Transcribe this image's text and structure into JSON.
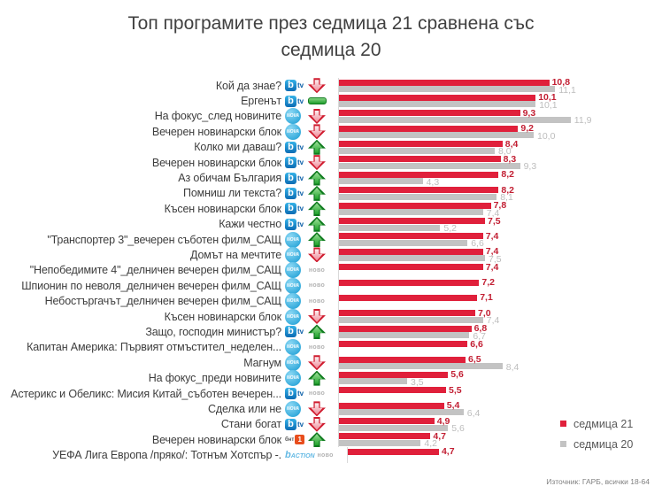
{
  "title": {
    "line1": "Топ програмите през седмица 21 сравнена със",
    "line2": "седмица 20"
  },
  "legend": {
    "items": [
      {
        "label": "седмица 21",
        "color": "#e0203b"
      },
      {
        "label": "седмица 20",
        "color": "#c3c3c3"
      }
    ]
  },
  "source": "Източник: ГАРБ, всички 18-64",
  "badges": {
    "new": "ново"
  },
  "logos": {
    "btv": {
      "square": "b",
      "suffix": "tv"
    },
    "nova": {
      "text": "NOVA"
    },
    "bnt1": {
      "prefix": "бнт",
      "square": "1"
    },
    "btv_action": {
      "text": "ACTION"
    }
  },
  "chart_data": {
    "type": "bar",
    "orientation": "horizontal",
    "title": "Топ програмите през седмица 21 сравнена със седмица 20",
    "series_names": [
      "седмица 21",
      "седмица 20"
    ],
    "xlim": [
      0,
      12
    ],
    "value_format": "comma-decimal",
    "legend_position": "bottom-right",
    "colors": {
      "week21": "#e0203b",
      "week20": "#c3c3c3"
    },
    "rows": [
      {
        "label": "Кой да знае?",
        "channel": "btv",
        "trend": "down",
        "week21": 10.8,
        "week20": 11.1
      },
      {
        "label": "Ергенът",
        "channel": "btv",
        "trend": "same",
        "week21": 10.1,
        "week20": 10.1
      },
      {
        "label": "На фокус_след новините",
        "channel": "nova",
        "trend": "down",
        "week21": 9.3,
        "week20": 11.9
      },
      {
        "label": "Вечерен новинарски блок",
        "channel": "nova",
        "trend": "down",
        "week21": 9.2,
        "week20": 10.0
      },
      {
        "label": "Колко ми даваш?",
        "channel": "btv",
        "trend": "up",
        "week21": 8.4,
        "week20": 8.0
      },
      {
        "label": "Вечерен новинарски блок",
        "channel": "btv",
        "trend": "down",
        "week21": 8.3,
        "week20": 9.3
      },
      {
        "label": "Аз обичам България",
        "channel": "btv",
        "trend": "up",
        "week21": 8.2,
        "week20": 4.3
      },
      {
        "label": "Помниш ли текста?",
        "channel": "btv",
        "trend": "up",
        "week21": 8.2,
        "week20": 8.1
      },
      {
        "label": "Късен новинарски блок",
        "channel": "btv",
        "trend": "up",
        "week21": 7.8,
        "week20": 7.4
      },
      {
        "label": "Кажи честно",
        "channel": "btv",
        "trend": "up",
        "week21": 7.5,
        "week20": 5.2
      },
      {
        "label": "\"Транспортер 3\"_вечерен съботен филм_САЩ",
        "channel": "nova",
        "trend": "up",
        "week21": 7.4,
        "week20": 6.6
      },
      {
        "label": "Домът на мечтите",
        "channel": "nova",
        "trend": "down",
        "week21": 7.4,
        "week20": 7.5
      },
      {
        "label": "\"Непобедимите 4\"_делничен вечерен филм_САЩ",
        "channel": "nova",
        "trend": "new",
        "week21": 7.4,
        "week20": null
      },
      {
        "label": "Шпионин по неволя_делничен вечерен филм_САЩ",
        "channel": "nova",
        "trend": "new",
        "week21": 7.2,
        "week20": null
      },
      {
        "label": "Небостъргачът_делничен вечерен филм_САЩ",
        "channel": "nova",
        "trend": "new",
        "week21": 7.1,
        "week20": null
      },
      {
        "label": "Късен новинарски блок",
        "channel": "nova",
        "trend": "down",
        "week21": 7.0,
        "week20": 7.4
      },
      {
        "label": "Защо, господин министър?",
        "channel": "btv",
        "trend": "up",
        "week21": 6.8,
        "week20": 6.7
      },
      {
        "label": "Капитан Америка: Първият отмъстител_неделен...",
        "channel": "nova",
        "trend": "new",
        "week21": 6.6,
        "week20": null
      },
      {
        "label": "Магнум",
        "channel": "nova",
        "trend": "down",
        "week21": 6.5,
        "week20": 8.4
      },
      {
        "label": "На фокус_преди новините",
        "channel": "nova",
        "trend": "up",
        "week21": 5.6,
        "week20": 3.5
      },
      {
        "label": "Астерикс и Обеликс: Мисия Китай_съботен вечерен...",
        "channel": "btv",
        "trend": "new",
        "week21": 5.5,
        "week20": null
      },
      {
        "label": "Сделка или не",
        "channel": "nova",
        "trend": "down",
        "week21": 5.4,
        "week20": 6.4
      },
      {
        "label": "Стани богат",
        "channel": "btv",
        "trend": "down",
        "week21": 4.9,
        "week20": 5.6
      },
      {
        "label": "Вечерен новинарски блок",
        "channel": "bnt1",
        "trend": "up",
        "week21": 4.7,
        "week20": 4.2
      },
      {
        "label": "УЕФА Лига Европа /пряко/: Тотнъм Хотспър -.",
        "channel": "btv_action",
        "trend": "new",
        "week21": 4.7,
        "week20": null
      }
    ]
  }
}
